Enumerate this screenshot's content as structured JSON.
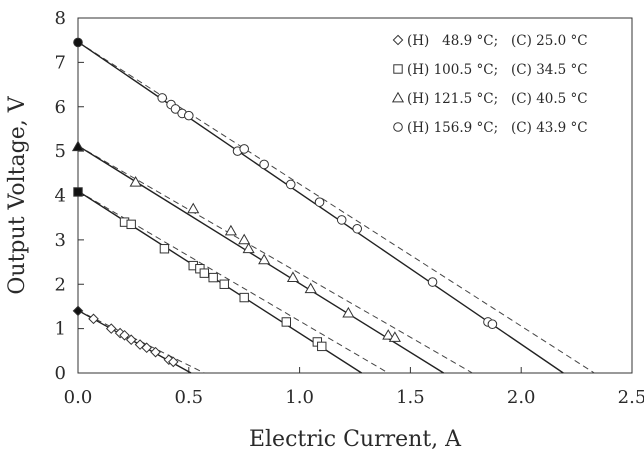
{
  "chart_data": {
    "type": "scatter",
    "xlabel": "Electric Current, A",
    "ylabel": "Output Voltage, V",
    "xlim": [
      0,
      2.5
    ],
    "ylim": [
      0,
      8
    ],
    "xticks": [
      "0.0",
      "0.5",
      "1.0",
      "1.5",
      "2.0",
      "2.5"
    ],
    "yticks": [
      "0",
      "1",
      "2",
      "3",
      "4",
      "5",
      "6",
      "7",
      "8"
    ],
    "grid": false,
    "legend_position": "top-right",
    "series": [
      {
        "name": "(H)   48.9 °C;   (C) 25.0 °C",
        "marker": "diamond",
        "points": [
          [
            0.0,
            1.4
          ],
          [
            0.07,
            1.22
          ],
          [
            0.15,
            1.0
          ],
          [
            0.19,
            0.9
          ],
          [
            0.21,
            0.85
          ],
          [
            0.24,
            0.75
          ],
          [
            0.28,
            0.64
          ],
          [
            0.31,
            0.57
          ],
          [
            0.35,
            0.47
          ],
          [
            0.41,
            0.3
          ],
          [
            0.43,
            0.25
          ]
        ],
        "fit": [
          [
            0.0,
            1.41
          ],
          [
            0.51,
            0.0
          ]
        ],
        "ideal": [
          [
            0.0,
            1.41
          ],
          [
            0.57,
            0.0
          ]
        ]
      },
      {
        "name": "(H) 100.5 °C;   (C) 34.5 °C",
        "marker": "square",
        "points": [
          [
            0.0,
            4.08
          ],
          [
            0.21,
            3.4
          ],
          [
            0.24,
            3.35
          ],
          [
            0.39,
            2.8
          ],
          [
            0.52,
            2.42
          ],
          [
            0.55,
            2.35
          ],
          [
            0.57,
            2.25
          ],
          [
            0.61,
            2.15
          ],
          [
            0.66,
            2.0
          ],
          [
            0.75,
            1.7
          ],
          [
            0.94,
            1.15
          ],
          [
            1.08,
            0.7
          ],
          [
            1.1,
            0.6
          ]
        ],
        "fit": [
          [
            0.0,
            4.1
          ],
          [
            1.28,
            0.0
          ]
        ],
        "ideal": [
          [
            0.0,
            4.1
          ],
          [
            1.4,
            0.0
          ]
        ]
      },
      {
        "name": "(H) 121.5 °C;   (C) 40.5 °C",
        "marker": "triangle",
        "points": [
          [
            0.0,
            5.1
          ],
          [
            0.26,
            4.3
          ],
          [
            0.52,
            3.7
          ],
          [
            0.69,
            3.2
          ],
          [
            0.75,
            3.0
          ],
          [
            0.77,
            2.8
          ],
          [
            0.84,
            2.55
          ],
          [
            0.97,
            2.15
          ],
          [
            1.05,
            1.9
          ],
          [
            1.22,
            1.35
          ],
          [
            1.4,
            0.85
          ],
          [
            1.43,
            0.8
          ]
        ],
        "fit": [
          [
            0.0,
            5.12
          ],
          [
            1.65,
            0.0
          ]
        ],
        "ideal": [
          [
            0.0,
            5.12
          ],
          [
            1.78,
            0.0
          ]
        ]
      },
      {
        "name": "(H) 156.9 °C;   (C) 43.9 °C",
        "marker": "circle",
        "points": [
          [
            0.0,
            7.45
          ],
          [
            0.38,
            6.2
          ],
          [
            0.42,
            6.05
          ],
          [
            0.44,
            5.95
          ],
          [
            0.47,
            5.85
          ],
          [
            0.5,
            5.8
          ],
          [
            0.72,
            5.0
          ],
          [
            0.75,
            5.05
          ],
          [
            0.84,
            4.7
          ],
          [
            0.96,
            4.25
          ],
          [
            1.09,
            3.85
          ],
          [
            1.19,
            3.45
          ],
          [
            1.26,
            3.25
          ],
          [
            1.6,
            2.05
          ],
          [
            1.85,
            1.15
          ],
          [
            1.87,
            1.1
          ]
        ],
        "fit": [
          [
            0.0,
            7.46
          ],
          [
            2.19,
            0.0
          ]
        ],
        "ideal": [
          [
            0.0,
            7.46
          ],
          [
            2.33,
            0.0
          ]
        ]
      }
    ]
  }
}
